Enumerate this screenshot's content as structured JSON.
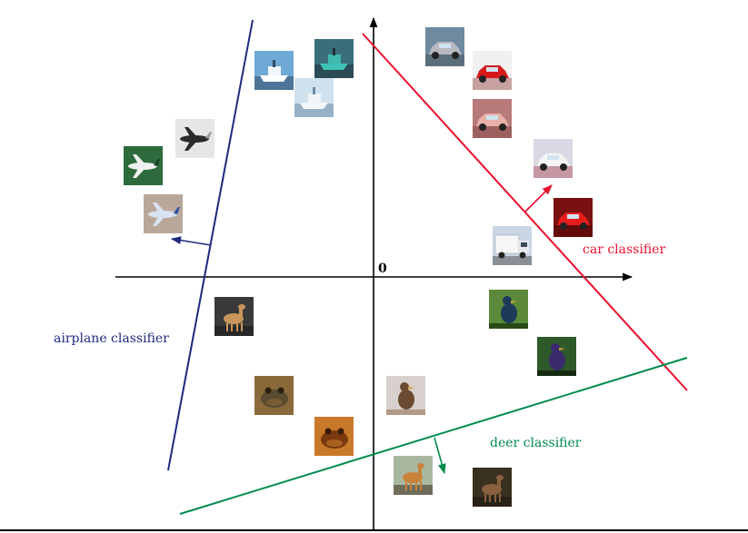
{
  "origin_label": "0",
  "classifiers": [
    {
      "key": "airplane",
      "label": "airplane classifier",
      "color": "#1f2a80"
    },
    {
      "key": "car",
      "label": "car classifier",
      "color": "#e8112d"
    },
    {
      "key": "deer",
      "label": "deer classifier",
      "color": "#008c4f"
    }
  ],
  "colors": {
    "axis": "#000000",
    "background": "#ffffff"
  },
  "thumbnails": [
    {
      "name": "boat-thumbnail-1",
      "subject": "boat",
      "palette": [
        "#6fa9d6",
        "#ffffff",
        "#2f4a66"
      ]
    },
    {
      "name": "boat-thumbnail-2",
      "subject": "boat",
      "palette": [
        "#3a6e7a",
        "#3fc2b4",
        "#1d2f38"
      ]
    },
    {
      "name": "boat-thumbnail-3",
      "subject": "boat",
      "palette": [
        "#cfe1ee",
        "#f4f7f8",
        "#6a8ca6"
      ]
    },
    {
      "name": "airplane-thumbnail-1",
      "subject": "airplane",
      "palette": [
        "#e6e6e6",
        "#2b2b2b",
        "#9a9a9a"
      ]
    },
    {
      "name": "airplane-thumbnail-2",
      "subject": "airplane",
      "palette": [
        "#2e6b3c",
        "#f0f0f0",
        "#1c3f24"
      ]
    },
    {
      "name": "airplane-thumbnail-3",
      "subject": "airplane",
      "palette": [
        "#b9a89a",
        "#d9e2f0",
        "#2a4fa0"
      ]
    },
    {
      "name": "car-thumbnail-1",
      "subject": "car",
      "palette": [
        "#6d8aa0",
        "#b8b8c0",
        "#3a3a3a"
      ]
    },
    {
      "name": "car-thumbnail-2",
      "subject": "car",
      "palette": [
        "#f0f0f0",
        "#d61a1a",
        "#7a0c0c"
      ]
    },
    {
      "name": "car-thumbnail-3",
      "subject": "car",
      "palette": [
        "#b87a7a",
        "#e8b0a8",
        "#6e2e2e"
      ]
    },
    {
      "name": "car-thumbnail-4",
      "subject": "car",
      "palette": [
        "#d9d9e6",
        "#f4f4f4",
        "#a02020"
      ]
    },
    {
      "name": "car-thumbnail-5",
      "subject": "car",
      "palette": [
        "#7a1010",
        "#e81c1c",
        "#3a0505"
      ]
    },
    {
      "name": "truck-thumbnail",
      "subject": "truck",
      "palette": [
        "#c9d6e6",
        "#f6f6f6",
        "#3a4a5a"
      ]
    },
    {
      "name": "bird-thumbnail-1",
      "subject": "bird",
      "palette": [
        "#5d8a3a",
        "#1d3a5a",
        "#2a4a1a"
      ]
    },
    {
      "name": "bird-thumbnail-2",
      "subject": "bird",
      "palette": [
        "#2e5a2a",
        "#3a2a6e",
        "#162a12"
      ]
    },
    {
      "name": "bird-thumbnail-3",
      "subject": "bird",
      "palette": [
        "#d8d0cc",
        "#6a4a30",
        "#b09a88"
      ]
    },
    {
      "name": "deer-thumbnail-1",
      "subject": "deer",
      "palette": [
        "#3a3a3a",
        "#c8955a",
        "#1a1a1a"
      ]
    },
    {
      "name": "deer-thumbnail-2",
      "subject": "deer",
      "palette": [
        "#a8b8a0",
        "#c8823a",
        "#4a3a2a"
      ]
    },
    {
      "name": "deer-thumbnail-3",
      "subject": "deer",
      "palette": [
        "#3a3020",
        "#8a6040",
        "#1e180e"
      ]
    },
    {
      "name": "frog-thumbnail-1",
      "subject": "frog",
      "palette": [
        "#8a6a3a",
        "#5a4a30",
        "#2a2010"
      ]
    },
    {
      "name": "frog-thumbnail-2",
      "subject": "frog",
      "palette": [
        "#c87a2a",
        "#7a3a10",
        "#3a1a08"
      ]
    }
  ]
}
